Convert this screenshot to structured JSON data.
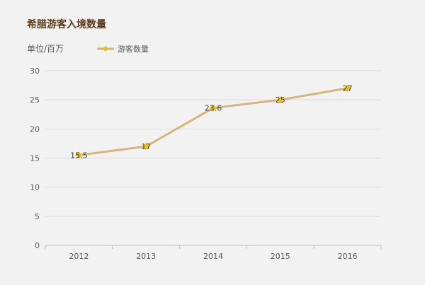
{
  "chart_data": {
    "type": "line",
    "title": "希腊游客入境数量",
    "ylabel": "单位/百万",
    "xlabel": "",
    "categories": [
      "2012",
      "2013",
      "2014",
      "2015",
      "2016"
    ],
    "series": [
      {
        "name": "游客数量",
        "values": [
          15.5,
          17,
          23.6,
          25,
          27
        ],
        "labels": [
          "15.5",
          "17",
          "23.6",
          "25",
          "27"
        ],
        "line_color": "#d9b47a",
        "marker_color": "#f2c200"
      }
    ],
    "ylim": [
      0,
      30
    ],
    "yticks": [
      "0",
      "5",
      "10",
      "15",
      "20",
      "25",
      "30"
    ],
    "grid": true,
    "legend": "top-left"
  }
}
